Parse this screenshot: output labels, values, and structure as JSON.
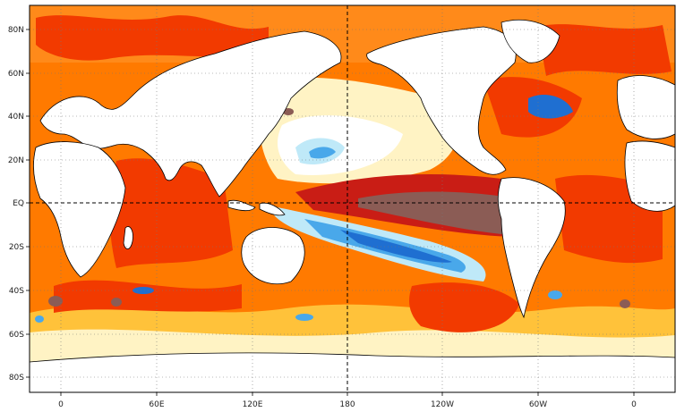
{
  "map": {
    "lat_labels": [
      "80N",
      "60N",
      "40N",
      "20N",
      "EQ",
      "20S",
      "40S",
      "60S",
      "80S"
    ],
    "lon_labels": [
      "0",
      "60E",
      "120E",
      "180",
      "120W",
      "60W",
      "0"
    ],
    "colors": {
      "ocean_cold_dark": "#1f6fd1",
      "ocean_cold": "#49a8ea",
      "ocean_cool": "#bfe9f8",
      "ocean_neutral": "#ffffff",
      "ocean_warm_pale": "#fff3c4",
      "ocean_warm": "#ffc23a",
      "ocean_hot": "#ff7a00",
      "ocean_very_hot": "#f23a00",
      "ocean_extreme": "#c91d15",
      "ocean_max": "#8b5c55",
      "land": "#ffffff",
      "coastline": "#000000",
      "grid": "#777777"
    }
  }
}
